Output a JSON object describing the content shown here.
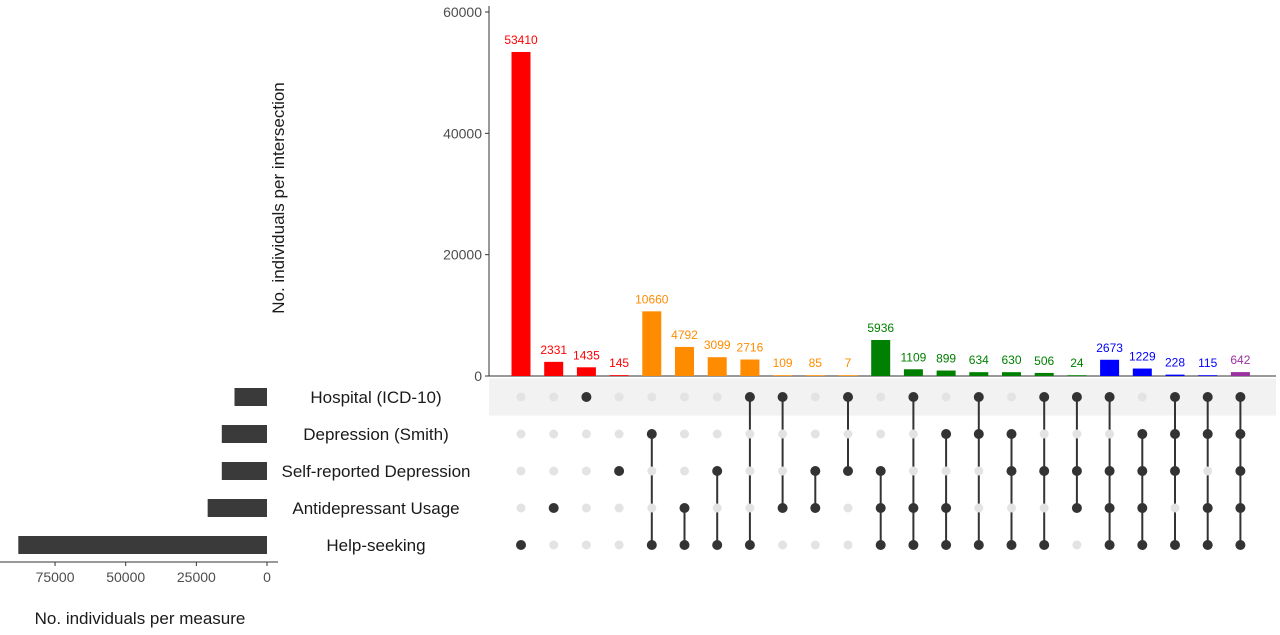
{
  "chart_data": {
    "type": "bar",
    "subtype": "upset",
    "ylabel": "No. individuals per intersection",
    "xlabel_sets": "No. individuals per measure",
    "yticks": [
      0,
      20000,
      40000,
      60000
    ],
    "ylim": [
      0,
      60000
    ],
    "set_ticks": [
      75000,
      50000,
      25000,
      0
    ],
    "set_xlim": [
      0,
      92000
    ],
    "sets": [
      {
        "name": "Hospital (ICD-10)",
        "size": 11500
      },
      {
        "name": "Depression (Smith)",
        "size": 16000
      },
      {
        "name": "Self-reported Depression",
        "size": 16000
      },
      {
        "name": "Antidepressant Usage",
        "size": 21000
      },
      {
        "name": "Help-seeking",
        "size": 88000
      }
    ],
    "intersections": [
      {
        "value": 53410,
        "label": "53410",
        "color": "#ff0000",
        "members": [
          4
        ]
      },
      {
        "value": 2331,
        "label": "2331",
        "color": "#ff0000",
        "members": [
          3
        ]
      },
      {
        "value": 1435,
        "label": "1435",
        "color": "#ff0000",
        "members": [
          0
        ]
      },
      {
        "value": 145,
        "label": "145",
        "color": "#ff0000",
        "members": [
          2
        ]
      },
      {
        "value": 10660,
        "label": "10660",
        "color": "#ff8c00",
        "members": [
          1,
          4
        ]
      },
      {
        "value": 4792,
        "label": "4792",
        "color": "#ff8c00",
        "members": [
          3,
          4
        ]
      },
      {
        "value": 3099,
        "label": "3099",
        "color": "#ff8c00",
        "members": [
          2,
          4
        ]
      },
      {
        "value": 2716,
        "label": "2716",
        "color": "#ff8c00",
        "members": [
          0,
          4
        ]
      },
      {
        "value": 109,
        "label": "109",
        "color": "#ff8c00",
        "members": [
          0,
          3
        ]
      },
      {
        "value": 85,
        "label": "85",
        "color": "#ff8c00",
        "members": [
          2,
          3
        ]
      },
      {
        "value": 7,
        "label": "7",
        "color": "#ff8c00",
        "members": [
          0,
          2
        ]
      },
      {
        "value": 5936,
        "label": "5936",
        "color": "#008000",
        "members": [
          2,
          3,
          4
        ]
      },
      {
        "value": 1109,
        "label": "1109",
        "color": "#008000",
        "members": [
          0,
          3,
          4
        ]
      },
      {
        "value": 899,
        "label": "899",
        "color": "#008000",
        "members": [
          1,
          3,
          4
        ]
      },
      {
        "value": 634,
        "label": "634",
        "color": "#008000",
        "members": [
          0,
          1,
          4
        ]
      },
      {
        "value": 630,
        "label": "630",
        "color": "#008000",
        "members": [
          1,
          2,
          4
        ]
      },
      {
        "value": 506,
        "label": "506",
        "color": "#008000",
        "members": [
          0,
          2,
          4
        ]
      },
      {
        "value": 24,
        "label": "24",
        "color": "#008000",
        "members": [
          0,
          2,
          3
        ]
      },
      {
        "value": 2673,
        "label": "2673",
        "color": "#0000ff",
        "members": [
          0,
          2,
          3,
          4
        ]
      },
      {
        "value": 1229,
        "label": "1229",
        "color": "#0000ff",
        "members": [
          1,
          2,
          3,
          4
        ]
      },
      {
        "value": 228,
        "label": "228",
        "color": "#0000ff",
        "members": [
          0,
          1,
          2,
          4
        ]
      },
      {
        "value": 115,
        "label": "115",
        "color": "#0000ff",
        "members": [
          0,
          1,
          3,
          4
        ]
      },
      {
        "value": 642,
        "label": "642",
        "color": "#9b30a0",
        "members": [
          0,
          1,
          2,
          3,
          4
        ]
      }
    ],
    "colors": {
      "set_bar": "#3a3a3a",
      "dot_active": "#333333",
      "dot_inactive": "#e3e3e3",
      "stripe": "#f2f2f2",
      "axis": "#333333",
      "tick_text": "#4d4d4d"
    }
  }
}
